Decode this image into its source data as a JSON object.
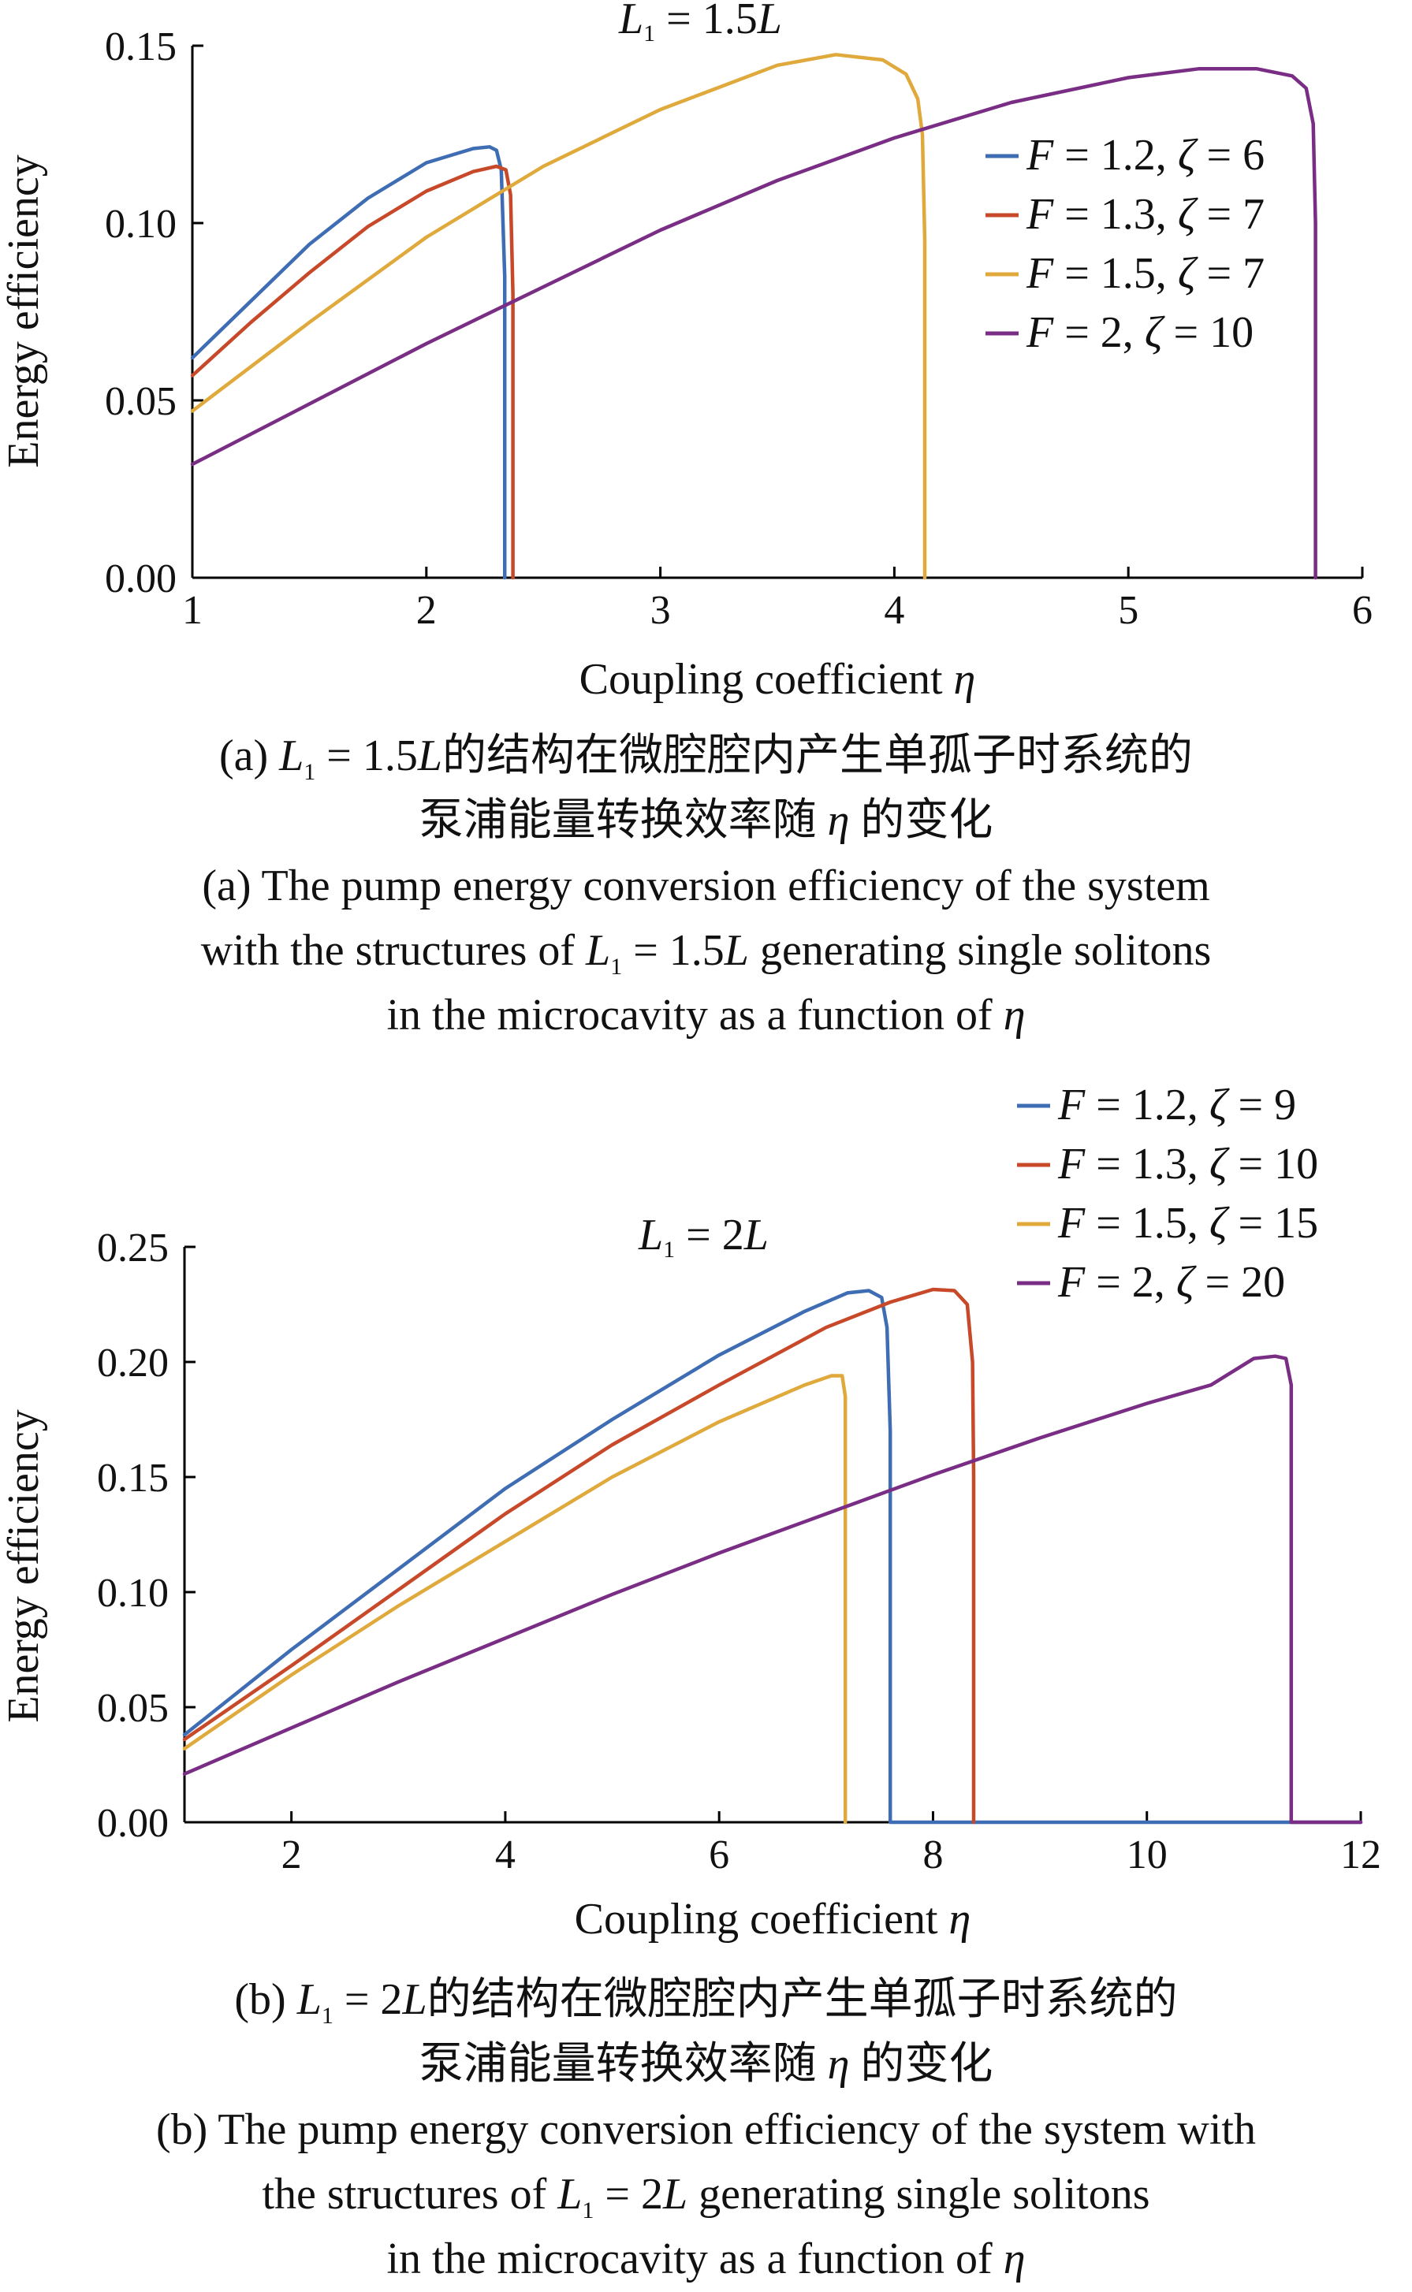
{
  "chart_data": [
    {
      "type": "line",
      "annotation": {
        "var": "L",
        "sub": "1",
        "text": " = 1.5",
        "unit": "L"
      },
      "xlabel": "Coupling coefficient",
      "xvar": "η",
      "ylabel": "Energy efficiency",
      "xlim": [
        1,
        6
      ],
      "ylim": [
        0,
        0.15
      ],
      "xticks": [
        "1",
        "2",
        "3",
        "4",
        "5",
        "6"
      ],
      "yticks": [
        "0.00",
        "0.05",
        "0.10",
        "0.15"
      ],
      "legend_position": "right",
      "series": [
        {
          "name": "F = 1.2, ζ = 6",
          "color": "#3f6db3",
          "x": [
            1.0,
            1.25,
            1.5,
            1.75,
            2.0,
            2.2,
            2.27,
            2.3,
            2.32,
            2.335,
            2.335
          ],
          "y": [
            0.062,
            0.078,
            0.094,
            0.107,
            0.117,
            0.121,
            0.1215,
            0.1205,
            0.115,
            0.085,
            0.0
          ]
        },
        {
          "name": "F = 1.3, ζ = 7",
          "color": "#c8492a",
          "x": [
            1.0,
            1.25,
            1.5,
            1.75,
            2.0,
            2.2,
            2.3,
            2.34,
            2.36,
            2.37,
            2.37
          ],
          "y": [
            0.057,
            0.072,
            0.086,
            0.099,
            0.109,
            0.1145,
            0.116,
            0.115,
            0.108,
            0.08,
            0.0
          ]
        },
        {
          "name": "F = 1.5, ζ = 7",
          "color": "#e0a93c",
          "x": [
            1.0,
            1.5,
            2.0,
            2.5,
            3.0,
            3.5,
            3.75,
            3.95,
            4.05,
            4.1,
            4.12,
            4.13,
            4.13
          ],
          "y": [
            0.047,
            0.072,
            0.096,
            0.116,
            0.132,
            0.1445,
            0.1475,
            0.146,
            0.142,
            0.135,
            0.125,
            0.095,
            0.0
          ]
        },
        {
          "name": "F = 2, ζ = 10",
          "color": "#7a2d84",
          "x": [
            1.0,
            1.5,
            2.0,
            2.5,
            3.0,
            3.5,
            4.0,
            4.5,
            5.0,
            5.3,
            5.55,
            5.7,
            5.76,
            5.79,
            5.8,
            5.8
          ],
          "y": [
            0.032,
            0.049,
            0.066,
            0.082,
            0.098,
            0.112,
            0.124,
            0.134,
            0.141,
            0.1435,
            0.1435,
            0.1415,
            0.138,
            0.128,
            0.1,
            0.0
          ]
        }
      ]
    },
    {
      "type": "line",
      "annotation": {
        "var": "L",
        "sub": "1",
        "text": " = 2",
        "unit": "L"
      },
      "xlabel": "Coupling coefficient",
      "xvar": "η",
      "ylabel": "Energy efficiency",
      "xlim": [
        1,
        12
      ],
      "ylim": [
        0,
        0.25
      ],
      "xticks": [
        "2",
        "4",
        "6",
        "8",
        "10",
        "12"
      ],
      "yticks": [
        "0.00",
        "0.05",
        "0.10",
        "0.15",
        "0.20",
        "0.25"
      ],
      "legend_position": "top-right",
      "series": [
        {
          "name": "F = 1.2, ζ = 9",
          "color": "#3f6db3",
          "x": [
            1.0,
            2.0,
            3.0,
            4.0,
            5.0,
            6.0,
            6.8,
            7.2,
            7.4,
            7.52,
            7.57,
            7.6,
            7.6,
            12.0
          ],
          "y": [
            0.038,
            0.075,
            0.11,
            0.145,
            0.175,
            0.203,
            0.222,
            0.23,
            0.231,
            0.228,
            0.215,
            0.17,
            0.0,
            0.0
          ]
        },
        {
          "name": "F = 1.3, ζ = 10",
          "color": "#c8492a",
          "x": [
            1.0,
            2.0,
            3.0,
            4.0,
            5.0,
            6.0,
            7.0,
            7.6,
            8.0,
            8.2,
            8.32,
            8.37,
            8.38,
            8.38
          ],
          "y": [
            0.036,
            0.068,
            0.101,
            0.134,
            0.164,
            0.19,
            0.215,
            0.226,
            0.2315,
            0.231,
            0.225,
            0.2,
            0.15,
            0.0
          ]
        },
        {
          "name": "F = 1.5, ζ = 15",
          "color": "#e0a93c",
          "x": [
            1.0,
            2.0,
            3.0,
            4.0,
            5.0,
            6.0,
            6.8,
            7.05,
            7.15,
            7.18,
            7.18
          ],
          "y": [
            0.032,
            0.064,
            0.094,
            0.122,
            0.15,
            0.174,
            0.19,
            0.194,
            0.194,
            0.185,
            0.0
          ]
        },
        {
          "name": "F = 2, ζ = 20",
          "color": "#7a2d84",
          "x": [
            1.0,
            2.0,
            3.0,
            4.0,
            5.0,
            6.0,
            7.0,
            8.0,
            9.0,
            10.0,
            10.6,
            11.0,
            11.2,
            11.3,
            11.35,
            11.35,
            12.0
          ],
          "y": [
            0.021,
            0.041,
            0.061,
            0.08,
            0.099,
            0.117,
            0.134,
            0.151,
            0.167,
            0.182,
            0.19,
            0.2015,
            0.2025,
            0.2015,
            0.19,
            0.0,
            0.0
          ]
        }
      ]
    }
  ],
  "captions": {
    "a_zh_1_pre": "(a) ",
    "a_zh_1_var": "L",
    "a_zh_1_sub": "1",
    "a_zh_1_mid": " = 1.5",
    "a_zh_1_unit": "L",
    "a_zh_1_post": "的结构在微腔腔内产生单孤子时系统的",
    "a_zh_2_pre": "泵浦能量转换效率随 ",
    "a_zh_2_var": "η",
    "a_zh_2_post": " 的变化",
    "a_en_1": "(a) The pump energy conversion efficiency of the system",
    "a_en_2_pre": "with the structures of ",
    "a_en_2_var": "L",
    "a_en_2_sub": "1",
    "a_en_2_mid": " = 1.5",
    "a_en_2_unit": "L",
    "a_en_2_post": " generating single solitons",
    "a_en_3_pre": "in the microcavity as a function of ",
    "a_en_3_var": "η",
    "b_zh_1_pre": "(b) ",
    "b_zh_1_var": "L",
    "b_zh_1_sub": "1",
    "b_zh_1_mid": " = 2",
    "b_zh_1_unit": "L",
    "b_zh_1_post": "的结构在微腔腔内产生单孤子时系统的",
    "b_zh_2_pre": "泵浦能量转换效率随 ",
    "b_zh_2_var": "η",
    "b_zh_2_post": " 的变化",
    "b_en_1": "(b) The pump energy conversion efficiency of the system with",
    "b_en_2_pre": "the structures of ",
    "b_en_2_var": "L",
    "b_en_2_sub": "1",
    "b_en_2_mid": " = 2",
    "b_en_2_unit": "L",
    "b_en_2_post": " generating single solitons",
    "b_en_3_pre": "in the microcavity as a function of ",
    "b_en_3_var": "η"
  }
}
